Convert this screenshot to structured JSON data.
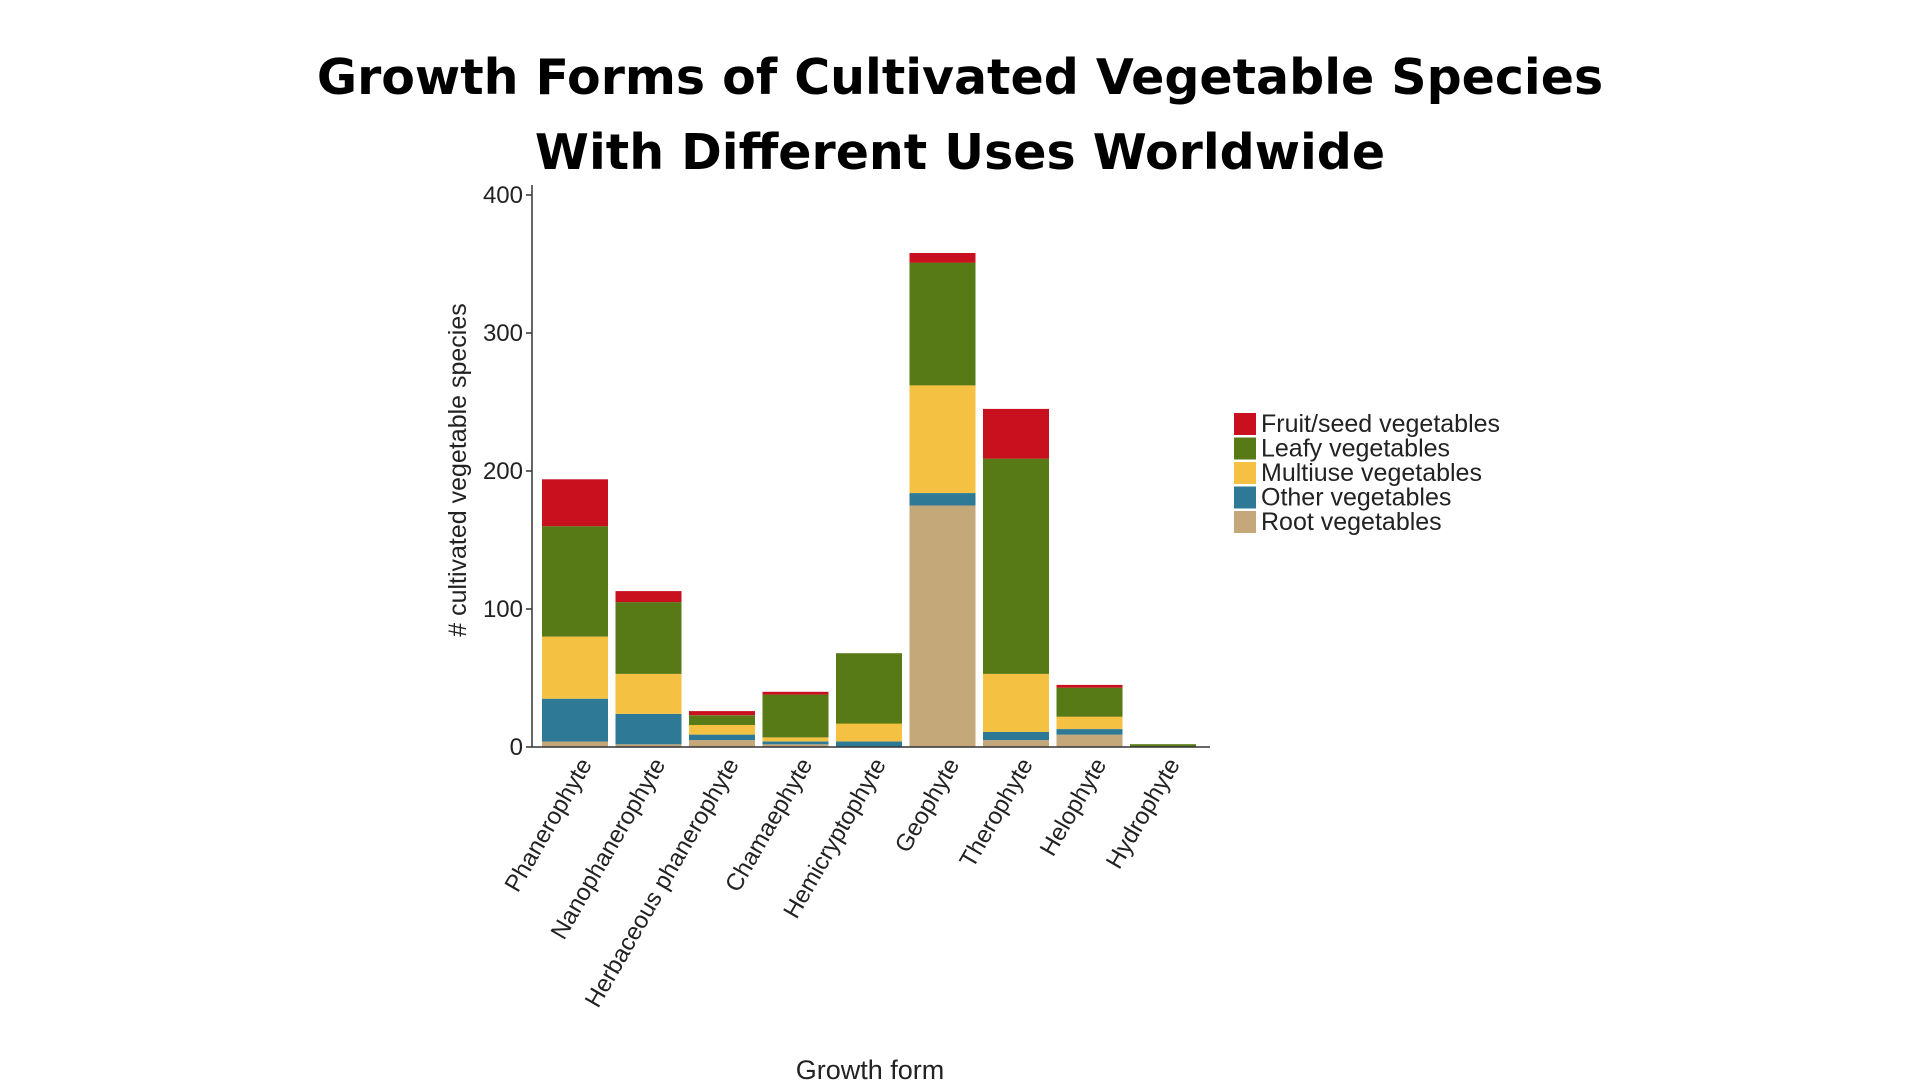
{
  "chart_data": {
    "type": "bar",
    "stacked": true,
    "title": [
      "Growth Forms of Cultivated Vegetable Species",
      "With Different Uses Worldwide"
    ],
    "xlabel": "Growth form",
    "ylabel": "# cultivated vegetable species",
    "ylim": [
      0,
      400
    ],
    "yticks": [
      0,
      100,
      200,
      300,
      400
    ],
    "grid": false,
    "legend_position": "right",
    "categories": [
      "Phanerophyte",
      "Nanophanerophyte",
      "Herbaceous phanerophyte",
      "Chamaephyte",
      "Hemicryptophyte",
      "Geophyte",
      "Therophyte",
      "Helophyte",
      "Hydrophyte"
    ],
    "series": [
      {
        "name": "Root vegetables",
        "color": "#c4a87a",
        "values": [
          4,
          2,
          5,
          2,
          0,
          175,
          5,
          9,
          0
        ]
      },
      {
        "name": "Other vegetables",
        "color": "#2e7a96",
        "values": [
          31,
          22,
          4,
          2,
          4,
          9,
          6,
          4,
          0
        ]
      },
      {
        "name": "Multiuse vegetables",
        "color": "#f4c142",
        "values": [
          45,
          29,
          7,
          3,
          13,
          78,
          42,
          9,
          0
        ]
      },
      {
        "name": "Leafy vegetables",
        "color": "#577a16",
        "values": [
          80,
          52,
          7,
          31,
          51,
          89,
          156,
          21,
          2
        ]
      },
      {
        "name": "Fruit/seed vegetables",
        "color": "#c8101e",
        "values": [
          34,
          8,
          3,
          2,
          0,
          7,
          36,
          2,
          0
        ]
      }
    ],
    "legend_order": [
      "Fruit/seed vegetables",
      "Leafy vegetables",
      "Multiuse vegetables",
      "Other vegetables",
      "Root vegetables"
    ]
  }
}
